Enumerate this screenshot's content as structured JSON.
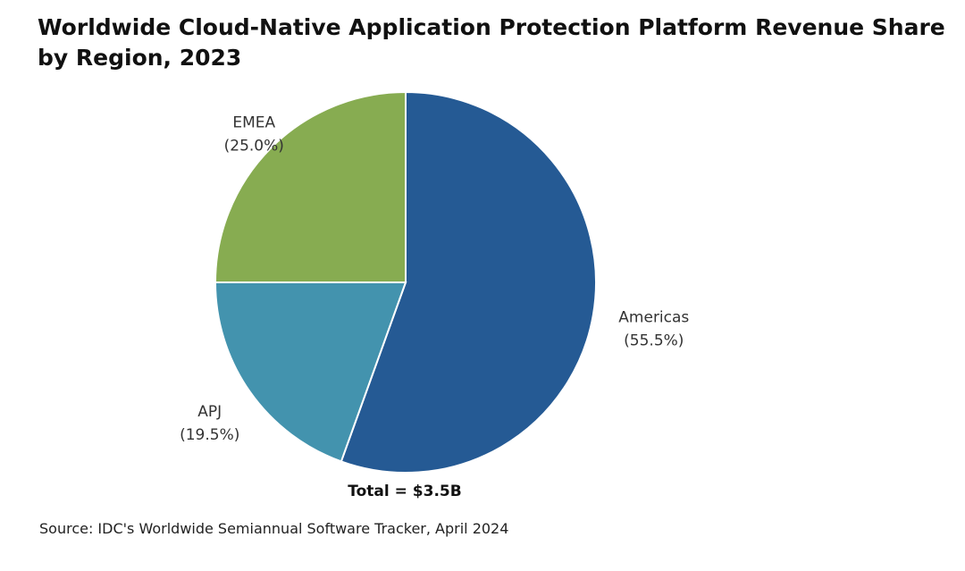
{
  "chart_data": {
    "type": "pie",
    "title": "Worldwide Cloud-Native Application Protection Platform Revenue Share by Region, 2023",
    "slices": [
      {
        "name": "Americas",
        "value": 55.5,
        "label": "(55.5%)",
        "color": "#255a94"
      },
      {
        "name": "APJ",
        "value": 19.5,
        "label": "(19.5%)",
        "color": "#4393ae"
      },
      {
        "name": "EMEA",
        "value": 25.0,
        "label": "(25.0%)",
        "color": "#87ac51"
      }
    ],
    "total_label": "Total = $3.5B",
    "source": "Source: IDC's Worldwide Semiannual Software Tracker, April 2024"
  }
}
